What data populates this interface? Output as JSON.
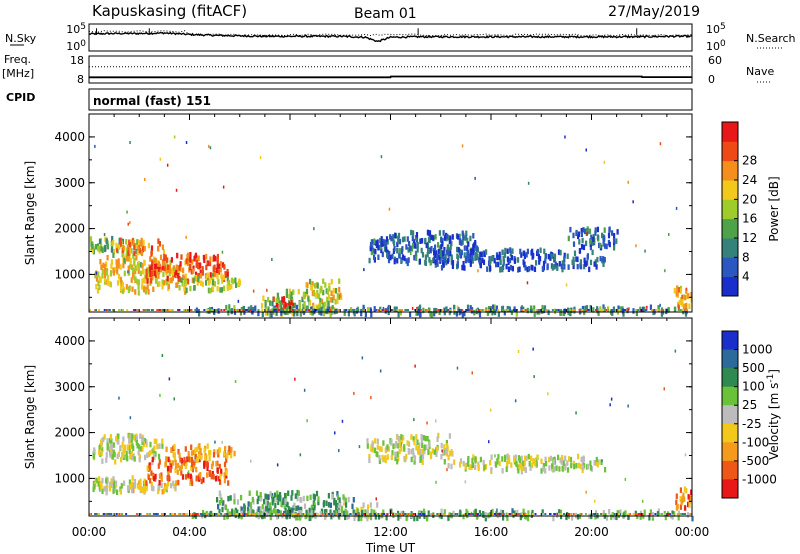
{
  "header": {
    "station": "Kapuskasing (fitACF)",
    "beam": "Beam 01",
    "date": "27/May/2019"
  },
  "left_labels": {
    "nsky": "N.Sky",
    "freq": "Freq.",
    "freq_unit": "[MHz]",
    "cpid": "CPID"
  },
  "right_labels": {
    "nsearch": "N.Search",
    "nave": "Nave"
  },
  "mode_text": "normal (fast) 151",
  "chart_data": [
    {
      "type": "line",
      "name": "noise",
      "y_tick_labels": [
        "10^5",
        "10^0"
      ],
      "y_right_tick_labels": [
        "10^5",
        "10^0"
      ],
      "x": [
        0,
        1,
        2,
        3,
        4,
        5,
        6,
        7,
        8,
        9,
        10,
        11,
        11.5,
        12,
        13,
        14,
        15,
        16,
        17,
        18,
        19,
        20,
        21,
        22,
        23,
        24
      ],
      "series": [
        {
          "values": [
            3.4,
            3.5,
            3.5,
            3.6,
            3.3,
            3.1,
            3.0,
            2.9,
            2.9,
            2.9,
            2.9,
            2.7,
            1.8,
            2.7,
            2.8,
            2.8,
            2.8,
            2.8,
            2.8,
            2.8,
            2.8,
            2.8,
            2.8,
            2.8,
            2.9,
            2.9
          ]
        }
      ]
    },
    {
      "type": "line",
      "name": "frequency-nave",
      "y_tick_labels": [
        "18",
        "8"
      ],
      "y_right_tick_labels": [
        "60",
        "0"
      ],
      "x": [
        0,
        12,
        12.01,
        22,
        22.01,
        24
      ],
      "series": [
        {
          "values": [
            10.1,
            10.1,
            10.4,
            10.4,
            10.2,
            10.2
          ]
        },
        {
          "values": [
            14.0,
            14.0,
            14.0,
            14.0,
            14.0,
            14.0
          ]
        }
      ]
    },
    {
      "type": "heatmap",
      "name": "power",
      "ylabel": "Slant Range [km]",
      "y_ticks": [
        1000,
        2000,
        3000,
        4000
      ],
      "ylim": [
        180,
        4500
      ],
      "colorbar_label": "Power [dB]",
      "colorbar_ticks": [
        "4",
        "8",
        "12",
        "16",
        "20",
        "24",
        "28"
      ],
      "colors": [
        "#1a2ecc",
        "#2a57c0",
        "#35827a",
        "#4ea24a",
        "#9ecc2a",
        "#f2c81a",
        "#f58e1a",
        "#ef4a16",
        "#e81818"
      ],
      "regions": [
        {
          "t0": 0.0,
          "t1": 2.2,
          "r0": 1450,
          "r1": 1850,
          "level": 0.45
        },
        {
          "t0": 0.2,
          "t1": 3.8,
          "r0": 650,
          "r1": 1450,
          "level": 0.6
        },
        {
          "t0": 1.0,
          "t1": 3.0,
          "r0": 1500,
          "r1": 1800,
          "level": 0.75
        },
        {
          "t0": 2.2,
          "t1": 5.5,
          "r0": 900,
          "r1": 1500,
          "level": 0.85
        },
        {
          "t0": 3.5,
          "t1": 6.0,
          "r0": 700,
          "r1": 1050,
          "level": 0.5
        },
        {
          "t0": 6.8,
          "t1": 8.6,
          "r0": 180,
          "r1": 700,
          "level": 0.45
        },
        {
          "t0": 7.3,
          "t1": 8.1,
          "r0": 250,
          "r1": 550,
          "level": 0.95
        },
        {
          "t0": 8.5,
          "t1": 10.0,
          "r0": 200,
          "r1": 950,
          "level": 0.55
        },
        {
          "t0": 11.0,
          "t1": 15.5,
          "r0": 1300,
          "r1": 2000,
          "level": 0.2
        },
        {
          "t0": 13.5,
          "t1": 20.5,
          "r0": 1150,
          "r1": 1600,
          "level": 0.15
        },
        {
          "t0": 19.0,
          "t1": 21.0,
          "r0": 1600,
          "r1": 2050,
          "level": 0.2
        },
        {
          "t0": 4.0,
          "t1": 24.0,
          "r0": 180,
          "r1": 350,
          "level": 0.3
        },
        {
          "t0": 23.2,
          "t1": 24.0,
          "r0": 350,
          "r1": 800,
          "level": 0.65
        }
      ]
    },
    {
      "type": "heatmap",
      "name": "velocity",
      "ylabel": "Slant Range [km]",
      "y_ticks": [
        1000,
        2000,
        3000,
        4000
      ],
      "ylim": [
        180,
        4500
      ],
      "xlabel": "Time UT",
      "x_tick_labels": [
        "00:00",
        "04:00",
        "08:00",
        "12:00",
        "16:00",
        "20:00",
        "00:00"
      ],
      "colorbar_label": "Velocity [m s-1]",
      "colorbar_ticks": [
        "1000",
        "500",
        "100",
        "25",
        "-25",
        "-100",
        "-500",
        "-1000"
      ],
      "colors": [
        "#1a2ecc",
        "#2c6a9c",
        "#2e8a50",
        "#6ac238",
        "#bcbcbc",
        "#f2c81a",
        "#f59a1a",
        "#ef5716",
        "#e81818"
      ],
      "regions": [
        {
          "t0": 0.0,
          "t1": 3.0,
          "r0": 1400,
          "r1": 2000,
          "level": 0.5
        },
        {
          "t0": 0.0,
          "t1": 2.2,
          "r0": 750,
          "r1": 1100,
          "level": 0.5
        },
        {
          "t0": 1.2,
          "t1": 3.5,
          "r0": 750,
          "r1": 1000,
          "level": 0.58
        },
        {
          "t0": 2.2,
          "t1": 5.5,
          "r0": 950,
          "r1": 1500,
          "level": 0.8
        },
        {
          "t0": 3.0,
          "t1": 5.8,
          "r0": 1450,
          "r1": 1800,
          "level": 0.7
        },
        {
          "t0": 5.0,
          "t1": 10.5,
          "r0": 200,
          "r1": 750,
          "level": 0.35
        },
        {
          "t0": 10.5,
          "t1": 11.5,
          "r0": 180,
          "r1": 500,
          "level": 0.5
        },
        {
          "t0": 11.0,
          "t1": 14.5,
          "r0": 1400,
          "r1": 2000,
          "level": 0.5
        },
        {
          "t0": 14.0,
          "t1": 20.5,
          "r0": 1200,
          "r1": 1550,
          "level": 0.5
        },
        {
          "t0": 4.0,
          "t1": 24.0,
          "r0": 180,
          "r1": 350,
          "level": 0.38
        },
        {
          "t0": 23.3,
          "t1": 24.0,
          "r0": 400,
          "r1": 850,
          "level": 0.78
        }
      ]
    }
  ]
}
